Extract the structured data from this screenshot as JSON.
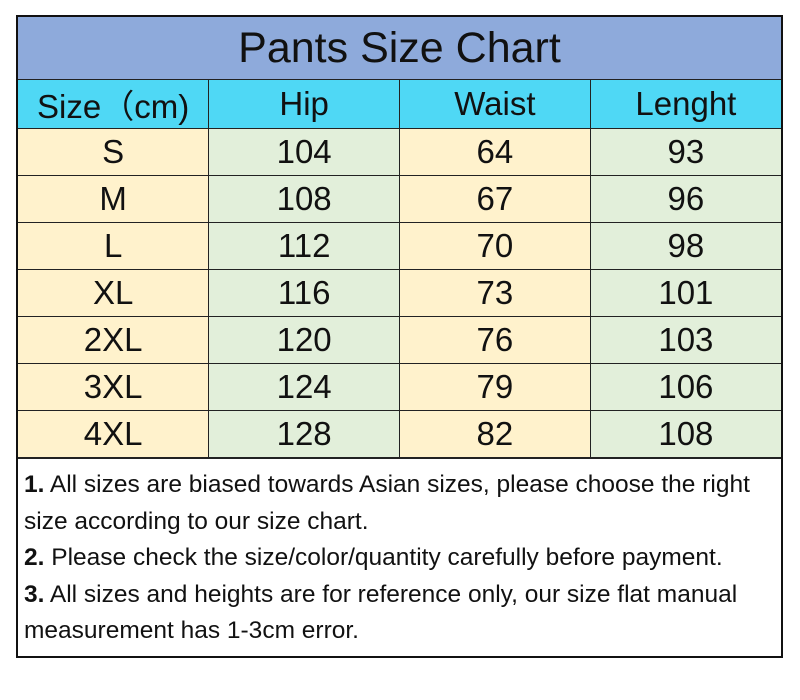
{
  "title": "Pants Size Chart",
  "headers": [
    "Size（cm)",
    "Hip",
    "Waist",
    "Lenght"
  ],
  "rows": [
    [
      "S",
      "104",
      "64",
      "93"
    ],
    [
      "M",
      "108",
      "67",
      "96"
    ],
    [
      "L",
      "112",
      "70",
      "98"
    ],
    [
      "XL",
      "116",
      "73",
      "101"
    ],
    [
      "2XL",
      "120",
      "76",
      "103"
    ],
    [
      "3XL",
      "124",
      "79",
      "106"
    ],
    [
      "4XL",
      "128",
      "82",
      "108"
    ]
  ],
  "notes": [
    {
      "num": "1.",
      "text": " All sizes are biased towards Asian sizes, please choose the right size according to our size chart."
    },
    {
      "num": "2.",
      "text": " Please check the size/color/quantity carefully before payment."
    },
    {
      "num": "3.",
      "text": " All sizes and heights are for reference only, our size flat manual measurement has 1-3cm error."
    }
  ],
  "colors": {
    "title_bg": "#8eaadb",
    "header_bg": "#4fd8f5",
    "yellow_col": "#fff2cc",
    "green_col": "#e2efda"
  }
}
